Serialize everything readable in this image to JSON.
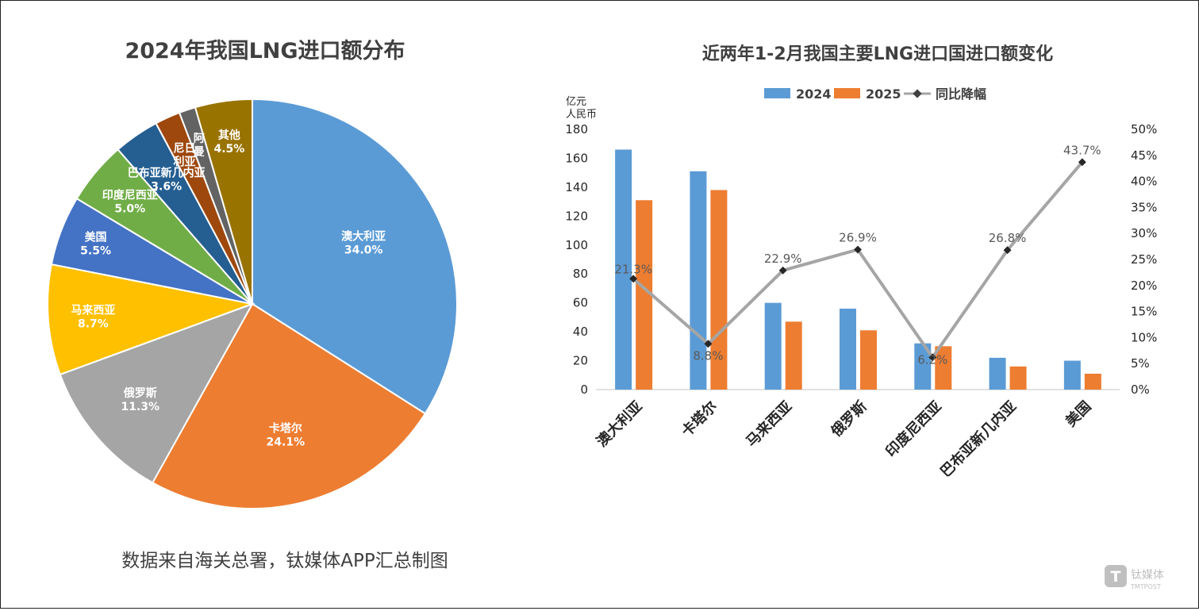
{
  "pie": {
    "title": "2024年我国LNG进口额分布",
    "type": "pie",
    "slices": [
      {
        "label": "澳大利亚",
        "value": 34.0,
        "value_label": "34.0%",
        "color": "#5b9bd5"
      },
      {
        "label": "卡塔尔",
        "value": 24.1,
        "value_label": "24.1%",
        "color": "#ed7d31"
      },
      {
        "label": "俄罗斯",
        "value": 11.3,
        "value_label": "11.3%",
        "color": "#a5a5a5"
      },
      {
        "label": "马来西亚",
        "value": 8.7,
        "value_label": "8.7%",
        "color": "#ffc000"
      },
      {
        "label": "美国",
        "value": 5.5,
        "value_label": "5.5%",
        "color": "#4472c4"
      },
      {
        "label": "印度尼西亚",
        "value": 5.0,
        "value_label": "5.0%",
        "color": "#70ad47"
      },
      {
        "label": "巴布亚新几内亚",
        "value": 3.6,
        "value_label": "3.6%",
        "color": "#255e91"
      },
      {
        "label": "尼日利亚",
        "value": 2.0,
        "value_label": "",
        "color": "#9e480e"
      },
      {
        "label": "阿曼",
        "value": 1.3,
        "value_label": "",
        "color": "#636363"
      },
      {
        "label": "其他",
        "value": 4.5,
        "value_label": "4.5%",
        "color": "#997300"
      }
    ]
  },
  "chart_data": {
    "type": "bar",
    "title": "近两年1-2月我国主要LNG进口国进口额变化",
    "ylabel_line1": "亿元",
    "ylabel_line2": "人民币",
    "categories": [
      "澳大利亚",
      "卡塔尔",
      "马来西亚",
      "俄罗斯",
      "印度尼西亚",
      "巴布亚新几内亚",
      "美国"
    ],
    "series": [
      {
        "name": "2024",
        "kind": "bar",
        "color": "#5b9bd5",
        "values": [
          166,
          151,
          60,
          56,
          32,
          22,
          20
        ]
      },
      {
        "name": "2025",
        "kind": "bar",
        "color": "#ed7d31",
        "values": [
          131,
          138,
          47,
          41,
          30,
          16,
          11
        ]
      },
      {
        "name": "同比降幅",
        "kind": "line",
        "color": "#a5a5a5",
        "axis": "right",
        "values": [
          21.3,
          8.8,
          22.9,
          26.9,
          6.2,
          26.8,
          43.7
        ],
        "labels": [
          "21.3%",
          "8.8%",
          "22.9%",
          "26.9%",
          "6.2%",
          "26.8%",
          "43.7%"
        ]
      }
    ],
    "ylim": [
      0,
      180
    ],
    "y_ticks": [
      0,
      20,
      40,
      60,
      80,
      100,
      120,
      140,
      160,
      180
    ],
    "y2lim": [
      0,
      50
    ],
    "y2_ticks": [
      "0%",
      "5%",
      "10%",
      "15%",
      "20%",
      "25%",
      "30%",
      "35%",
      "40%",
      "45%",
      "50%"
    ],
    "legend_position": "top",
    "grid": false
  },
  "footer": {
    "source": "数据来自海关总署，钛媒体APP汇总制图",
    "watermark_cn": "钛媒体",
    "watermark_en": "TMTPOST"
  }
}
